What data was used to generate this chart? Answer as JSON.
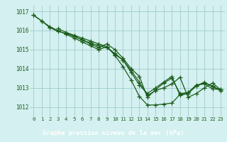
{
  "background_color": "#d4f0f0",
  "grid_color": "#a0cccc",
  "line_color": "#1a5c1a",
  "marker_color": "#1a5c1a",
  "xlabel": "Graphe pression niveau de la mer (hPa)",
  "xlabel_bg": "#1a6b1a",
  "xlabel_text_color": "#ffffff",
  "ylim": [
    1011.5,
    1017.3
  ],
  "xlim": [
    -0.5,
    23.5
  ],
  "yticks": [
    1012,
    1013,
    1014,
    1015,
    1016,
    1017
  ],
  "xticks": [
    0,
    1,
    2,
    3,
    4,
    5,
    6,
    7,
    8,
    9,
    10,
    11,
    12,
    13,
    14,
    15,
    16,
    17,
    18,
    19,
    20,
    21,
    22,
    23
  ],
  "lines": [
    {
      "x": [
        0,
        1,
        2,
        3,
        4,
        5,
        6,
        7,
        8,
        9,
        10,
        11,
        12,
        13,
        14,
        15,
        16,
        17,
        18,
        19,
        20,
        21,
        22,
        23
      ],
      "y": [
        1016.8,
        1016.5,
        1016.2,
        1016.0,
        1015.8,
        1015.6,
        1015.4,
        1015.2,
        1015.0,
        1015.15,
        1014.7,
        1014.1,
        1013.4,
        1012.55,
        1012.1,
        1012.1,
        1012.15,
        1012.2,
        1012.65,
        1012.75,
        1013.15,
        1013.2,
        1012.95,
        1012.9
      ]
    },
    {
      "x": [
        0,
        1,
        2,
        3,
        4,
        5,
        6,
        7,
        8,
        9,
        10,
        11,
        12,
        13,
        14,
        15,
        16,
        17,
        18,
        19,
        20,
        21,
        22,
        23
      ],
      "y": [
        1016.8,
        1016.5,
        1016.15,
        1015.95,
        1015.85,
        1015.7,
        1015.5,
        1015.3,
        1015.1,
        1015.3,
        1015.0,
        1014.55,
        1014.0,
        1013.6,
        1012.5,
        1012.9,
        1013.25,
        1013.5,
        1012.7,
        1012.75,
        1013.1,
        1013.25,
        1013.1,
        1012.85
      ]
    },
    {
      "x": [
        3,
        4,
        5,
        6,
        7,
        8,
        9,
        10,
        11,
        12,
        13,
        14,
        15,
        16,
        17,
        18,
        19,
        20,
        21,
        22,
        23
      ],
      "y": [
        1016.1,
        1015.9,
        1015.75,
        1015.6,
        1015.45,
        1015.3,
        1015.15,
        1014.75,
        1014.45,
        1013.8,
        1013.15,
        1012.7,
        1013.0,
        1013.3,
        1013.6,
        1012.6,
        1012.7,
        1013.1,
        1013.3,
        1013.05,
        1012.9
      ]
    },
    {
      "x": [
        4,
        5,
        6,
        7,
        8,
        9,
        10,
        11,
        12,
        13,
        14,
        15,
        16,
        17,
        18,
        19,
        20,
        21,
        22,
        23
      ],
      "y": [
        1015.85,
        1015.7,
        1015.5,
        1015.35,
        1015.2,
        1015.1,
        1014.8,
        1014.45,
        1013.9,
        1013.3,
        1012.6,
        1012.85,
        1013.0,
        1013.2,
        1013.55,
        1012.5,
        1012.7,
        1013.0,
        1013.25,
        1012.9
      ]
    }
  ]
}
